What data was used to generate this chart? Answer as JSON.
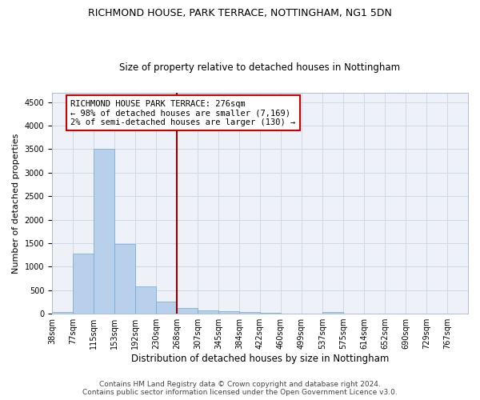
{
  "title": "RICHMOND HOUSE, PARK TERRACE, NOTTINGHAM, NG1 5DN",
  "subtitle": "Size of property relative to detached houses in Nottingham",
  "xlabel": "Distribution of detached houses by size in Nottingham",
  "ylabel": "Number of detached properties",
  "bin_labels": [
    "38sqm",
    "77sqm",
    "115sqm",
    "153sqm",
    "192sqm",
    "230sqm",
    "268sqm",
    "307sqm",
    "345sqm",
    "384sqm",
    "422sqm",
    "460sqm",
    "499sqm",
    "537sqm",
    "575sqm",
    "614sqm",
    "652sqm",
    "690sqm",
    "729sqm",
    "767sqm"
  ],
  "bar_values": [
    30,
    1270,
    3500,
    1480,
    580,
    250,
    115,
    75,
    50,
    30,
    15,
    5,
    0,
    30,
    0,
    0,
    0,
    0,
    0,
    0
  ],
  "bar_color": "#b8d0eb",
  "bar_edge_color": "#6aaad4",
  "ylim": [
    0,
    4700
  ],
  "yticks": [
    0,
    500,
    1000,
    1500,
    2000,
    2500,
    3000,
    3500,
    4000,
    4500
  ],
  "property_line_label": "RICHMOND HOUSE PARK TERRACE: 276sqm",
  "annotation_line1": "← 98% of detached houses are smaller (7,169)",
  "annotation_line2": "2% of semi-detached houses are larger (130) →",
  "annotation_box_color": "#ffffff",
  "annotation_box_edge_color": "#cc0000",
  "vline_color": "#8b0000",
  "grid_color": "#ccd8e8",
  "bg_color": "#eef2f8",
  "footer1": "Contains HM Land Registry data © Crown copyright and database right 2024.",
  "footer2": "Contains public sector information licensed under the Open Government Licence v3.0.",
  "title_fontsize": 9,
  "subtitle_fontsize": 8.5,
  "xlabel_fontsize": 8.5,
  "ylabel_fontsize": 8,
  "tick_fontsize": 7,
  "annotation_fontsize": 7.5,
  "footer_fontsize": 6.5
}
